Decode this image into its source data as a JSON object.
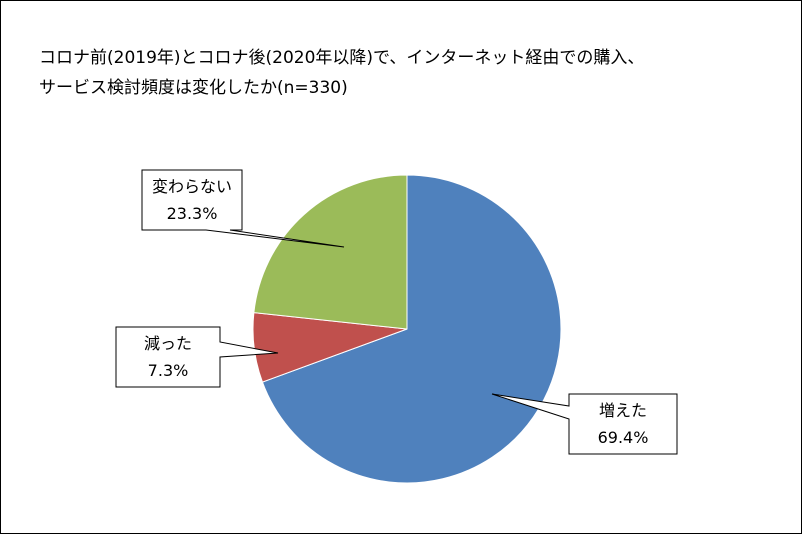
{
  "chart_data": {
    "type": "pie",
    "title_lines": [
      "コロナ前(2019年)とコロナ後(2020年以降)で、インターネット経由での購入、",
      "サービス検討頻度は変化したか(n=330)"
    ],
    "slices": [
      {
        "name": "増えた",
        "value": 69.4,
        "label": "69.4%",
        "color": "#4f81bd"
      },
      {
        "name": "減った",
        "value": 7.3,
        "label": "7.3%",
        "color": "#c0504d"
      },
      {
        "name": "変わらない",
        "value": 23.3,
        "label": "23.3%",
        "color": "#9bbb59"
      }
    ],
    "start_angle": "12 o'clock",
    "direction": "clockwise",
    "legend": "none",
    "data_labels": "callouts with category name and percentage"
  }
}
